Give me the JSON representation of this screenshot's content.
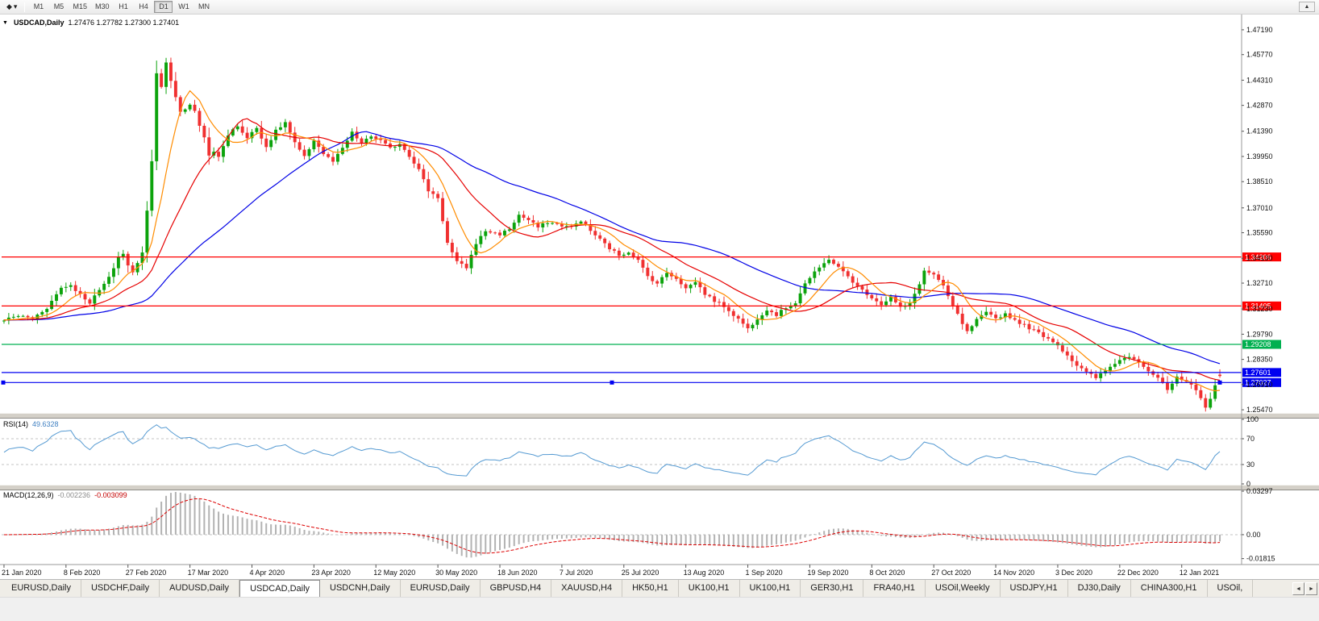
{
  "toolbar": {
    "dropdown_icon": "◆",
    "dropdown_caret": "▾",
    "timeframes": [
      "M1",
      "M5",
      "M15",
      "M30",
      "H1",
      "H4",
      "D1",
      "W1",
      "MN"
    ],
    "active_timeframe": "D1",
    "overflow_icon": "▲"
  },
  "chart": {
    "collapse_icon": "▼",
    "symbol_title": "USDCAD,Daily",
    "ohlc_text": "1.27476 1.27782 1.27300 1.27401"
  },
  "chart_data": {
    "type": "candlestick-with-indicators",
    "symbol": "USDCAD",
    "timeframe": "Daily",
    "last_candle": {
      "open": 1.27476,
      "high": 1.27782,
      "low": 1.273,
      "close": 1.27401
    },
    "price_axis_labels": [
      "1.47190",
      "1.45770",
      "1.44310",
      "1.42870",
      "1.41390",
      "1.39950",
      "1.38510",
      "1.37010",
      "1.35590",
      "1.34130",
      "1.32710",
      "1.31230",
      "1.29790",
      "1.28350",
      "1.26910",
      "1.25470"
    ],
    "price_axis_range": [
      1.2529,
      1.4774
    ],
    "x_axis_labels": [
      "21 Jan 2020",
      "8 Feb 2020",
      "27 Feb 2020",
      "17 Mar 2020",
      "4 Apr 2020",
      "23 Apr 2020",
      "12 May 2020",
      "30 May 2020",
      "18 Jun 2020",
      "7 Jul 2020",
      "25 Jul 2020",
      "13 Aug 2020",
      "1 Sep 2020",
      "19 Sep 2020",
      "8 Oct 2020",
      "27 Oct 2020",
      "14 Nov 2020",
      "3 Dec 2020",
      "22 Dec 2020",
      "12 Jan 2021"
    ],
    "candles_per_label": 13,
    "num_candles": 256,
    "close_anchors": [
      [
        0,
        1.306
      ],
      [
        3,
        1.3085
      ],
      [
        6,
        1.307
      ],
      [
        9,
        1.313
      ],
      [
        12,
        1.3245
      ],
      [
        14,
        1.326
      ],
      [
        16,
        1.3205
      ],
      [
        18,
        1.316
      ],
      [
        20,
        1.323
      ],
      [
        22,
        1.33
      ],
      [
        24,
        1.342
      ],
      [
        25,
        1.344
      ],
      [
        26,
        1.337
      ],
      [
        27,
        1.333
      ],
      [
        28,
        1.339
      ],
      [
        29,
        1.346
      ],
      [
        30,
        1.368
      ],
      [
        31,
        1.399
      ],
      [
        32,
        1.448
      ],
      [
        33,
        1.438
      ],
      [
        34,
        1.452
      ],
      [
        35,
        1.443
      ],
      [
        36,
        1.434
      ],
      [
        37,
        1.425
      ],
      [
        39,
        1.43
      ],
      [
        41,
        1.418
      ],
      [
        43,
        1.402
      ],
      [
        45,
        1.399
      ],
      [
        47,
        1.412
      ],
      [
        49,
        1.417
      ],
      [
        51,
        1.41
      ],
      [
        53,
        1.416
      ],
      [
        55,
        1.405
      ],
      [
        57,
        1.414
      ],
      [
        59,
        1.419
      ],
      [
        61,
        1.407
      ],
      [
        63,
        1.399
      ],
      [
        65,
        1.409
      ],
      [
        67,
        1.401
      ],
      [
        69,
        1.3965
      ],
      [
        71,
        1.404
      ],
      [
        73,
        1.413
      ],
      [
        75,
        1.407
      ],
      [
        77,
        1.411
      ],
      [
        79,
        1.4085
      ],
      [
        81,
        1.404
      ],
      [
        83,
        1.407
      ],
      [
        85,
        1.4
      ],
      [
        87,
        1.392
      ],
      [
        89,
        1.38
      ],
      [
        91,
        1.376
      ],
      [
        93,
        1.35
      ],
      [
        95,
        1.339
      ],
      [
        97,
        1.336
      ],
      [
        99,
        1.35
      ],
      [
        101,
        1.357
      ],
      [
        104,
        1.355
      ],
      [
        106,
        1.358
      ],
      [
        108,
        1.366
      ],
      [
        110,
        1.363
      ],
      [
        112,
        1.359
      ],
      [
        114,
        1.362
      ],
      [
        117,
        1.36
      ],
      [
        119,
        1.359
      ],
      [
        121,
        1.363
      ],
      [
        123,
        1.357
      ],
      [
        125,
        1.352
      ],
      [
        127,
        1.347
      ],
      [
        129,
        1.343
      ],
      [
        131,
        1.345
      ],
      [
        133,
        1.34
      ],
      [
        135,
        1.331
      ],
      [
        137,
        1.327
      ],
      [
        139,
        1.333
      ],
      [
        141,
        1.33
      ],
      [
        143,
        1.324
      ],
      [
        145,
        1.328
      ],
      [
        147,
        1.321
      ],
      [
        149,
        1.317
      ],
      [
        151,
        1.314
      ],
      [
        153,
        1.309
      ],
      [
        155,
        1.304
      ],
      [
        156,
        1.301
      ],
      [
        158,
        1.307
      ],
      [
        160,
        1.312
      ],
      [
        162,
        1.309
      ],
      [
        164,
        1.313
      ],
      [
        166,
        1.316
      ],
      [
        168,
        1.327
      ],
      [
        170,
        1.333
      ],
      [
        173,
        1.341
      ],
      [
        175,
        1.336
      ],
      [
        177,
        1.331
      ],
      [
        179,
        1.325
      ],
      [
        182,
        1.319
      ],
      [
        184,
        1.315
      ],
      [
        186,
        1.319
      ],
      [
        188,
        1.313
      ],
      [
        190,
        1.315
      ],
      [
        192,
        1.327
      ],
      [
        193,
        1.334
      ],
      [
        195,
        1.332
      ],
      [
        197,
        1.325
      ],
      [
        199,
        1.314
      ],
      [
        201,
        1.304
      ],
      [
        202,
        1.299
      ],
      [
        204,
        1.306
      ],
      [
        206,
        1.31
      ],
      [
        208,
        1.307
      ],
      [
        210,
        1.3095
      ],
      [
        212,
        1.306
      ],
      [
        214,
        1.303
      ],
      [
        216,
        1.3
      ],
      [
        218,
        1.297
      ],
      [
        220,
        1.294
      ],
      [
        221,
        1.2915
      ],
      [
        223,
        1.286
      ],
      [
        225,
        1.28
      ],
      [
        227,
        1.276
      ],
      [
        229,
        1.273
      ],
      [
        231,
        1.277
      ],
      [
        233,
        1.2815
      ],
      [
        234,
        1.283
      ],
      [
        236,
        1.2855
      ],
      [
        238,
        1.2825
      ],
      [
        240,
        1.277
      ],
      [
        242,
        1.273
      ],
      [
        244,
        1.266
      ],
      [
        246,
        1.273
      ],
      [
        247,
        1.271
      ],
      [
        249,
        1.269
      ],
      [
        251,
        1.262
      ],
      [
        252,
        1.2565
      ],
      [
        253,
        1.261
      ],
      [
        254,
        1.268
      ],
      [
        255,
        1.27401
      ]
    ],
    "horizontal_lines": [
      {
        "price": 1.34206,
        "label": "1.34206",
        "color": "#FF0000",
        "selected": false
      },
      {
        "price": 1.31405,
        "label": "1.31405",
        "color": "#FF0000",
        "selected": false
      },
      {
        "price": 1.29208,
        "label": "1.29208",
        "color": "#00B050",
        "selected": false
      },
      {
        "price": 1.27601,
        "label": "1.27601",
        "color": "#0000F0",
        "selected": false
      },
      {
        "price": 1.27027,
        "label": "1.27027",
        "color": "#0000F0",
        "selected": true
      }
    ],
    "moving_averages": [
      {
        "period": 45,
        "color": "#0000E6"
      },
      {
        "period": 20,
        "color": "#E60000"
      },
      {
        "period": 8,
        "color": "#FF8C00"
      }
    ],
    "rsi": {
      "name": "RSI(14)",
      "period": 14,
      "current": "49.6328",
      "levels": [
        100,
        70,
        30,
        0
      ],
      "dashed_levels": [
        70,
        30
      ],
      "ylim": [
        0,
        100
      ],
      "line_color": "#559ad2"
    },
    "macd": {
      "name": "MACD(12,26,9)",
      "fast": 12,
      "slow": 26,
      "signal_period": 9,
      "current_macd": "-0.002236",
      "current_signal": "-0.003099",
      "axis_labels": [
        "0.03297",
        "0.00",
        "-0.01815"
      ],
      "ylim": [
        -0.0202,
        0.0336
      ],
      "histogram_color": "#b2b2b2",
      "signal_color": "#dd0000"
    },
    "colors": {
      "up": "#0CA30C",
      "down": "#F03030",
      "axis_line": "#9a9a9a",
      "separator": "#d4d0c8",
      "tag_text": "#ffffff"
    }
  },
  "tabbar": {
    "tabs": [
      "EURUSD,Daily",
      "USDCHF,Daily",
      "AUDUSD,Daily",
      "USDCAD,Daily",
      "USDCNH,Daily",
      "EURUSD,Daily",
      "GBPUSD,H4",
      "XAUUSD,H4",
      "HK50,H1",
      "UK100,H1",
      "UK100,H1",
      "GER30,H1",
      "FRA40,H1",
      "USOil,Weekly",
      "USDJPY,H1",
      "DJ30,Daily",
      "CHINA300,H1",
      "USOil,"
    ],
    "active_tab": "USDCAD,Daily",
    "active_index": 3,
    "left_arrow": "◄",
    "right_arrow": "►"
  }
}
